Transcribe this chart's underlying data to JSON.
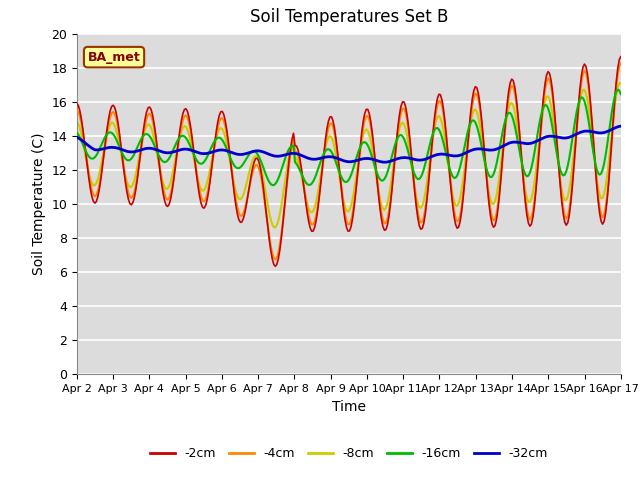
{
  "title": "Soil Temperatures Set B",
  "xlabel": "Time",
  "ylabel": "Soil Temperature (C)",
  "annotation": "BA_met",
  "ylim": [
    0,
    20
  ],
  "yticks": [
    0,
    2,
    4,
    6,
    8,
    10,
    12,
    14,
    16,
    18,
    20
  ],
  "xtick_labels": [
    "Apr 2",
    "Apr 3",
    "Apr 4",
    "Apr 5",
    "Apr 6",
    "Apr 7",
    "Apr 8",
    "Apr 9",
    "Apr 10",
    "Apr 11",
    "Apr 12",
    "Apr 13",
    "Apr 14",
    "Apr 15",
    "Apr 16",
    "Apr 17"
  ],
  "legend_labels": [
    "-2cm",
    "-4cm",
    "-8cm",
    "-16cm",
    "-32cm"
  ],
  "line_colors": [
    "#cc0000",
    "#ff8800",
    "#cccc00",
    "#00bb00",
    "#0000cc"
  ],
  "line_widths": [
    1.2,
    1.5,
    1.5,
    1.5,
    2.0
  ],
  "bg_color": "#dcdcdc",
  "fig_bg_color": "#ffffff",
  "annotation_bg": "#ffff99",
  "annotation_border": "#993300"
}
